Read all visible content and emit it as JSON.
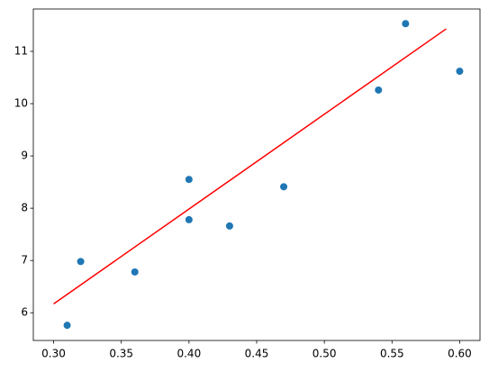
{
  "chart_data": {
    "type": "scatter",
    "xlim": [
      0.285,
      0.615
    ],
    "ylim": [
      5.47,
      11.81
    ],
    "xticks": [
      {
        "value": 0.3,
        "label": "0.30"
      },
      {
        "value": 0.35,
        "label": "0.35"
      },
      {
        "value": 0.4,
        "label": "0.40"
      },
      {
        "value": 0.45,
        "label": "0.45"
      },
      {
        "value": 0.5,
        "label": "0.50"
      },
      {
        "value": 0.55,
        "label": "0.55"
      },
      {
        "value": 0.6,
        "label": "0.60"
      }
    ],
    "yticks": [
      6,
      7,
      8,
      9,
      10,
      11
    ],
    "grid": false,
    "series": [
      {
        "type": "scatter",
        "color": "#1f77b4",
        "x": [
          0.31,
          0.32,
          0.36,
          0.4,
          0.4,
          0.43,
          0.47,
          0.54,
          0.56,
          0.6
        ],
        "values": [
          5.76,
          6.98,
          6.78,
          8.55,
          7.78,
          7.66,
          8.41,
          10.26,
          11.53,
          10.62
        ]
      },
      {
        "type": "line",
        "color": "#ff0000",
        "x": [
          0.3,
          0.59
        ],
        "values": [
          6.17,
          11.43
        ]
      }
    ]
  }
}
